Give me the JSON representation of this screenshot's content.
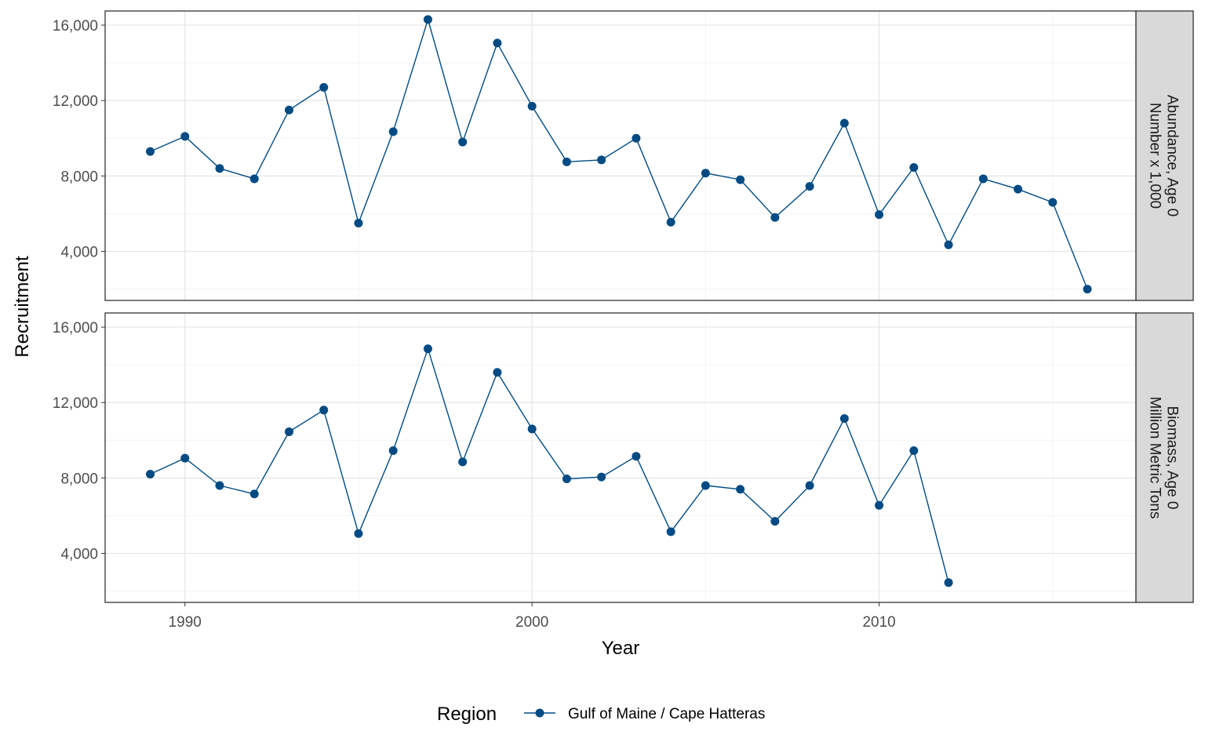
{
  "chart_data": {
    "type": "line",
    "facet_layout": "rows",
    "xlabel": "Year",
    "ylabel": "Recruitment",
    "x_ticks": [
      1990,
      2000,
      2010
    ],
    "x_range": [
      1987.7,
      2017.4
    ],
    "y_ticks": [
      4000,
      8000,
      12000,
      16000
    ],
    "y_tick_labels": [
      "4,000",
      "8,000",
      "12,000",
      "16,000"
    ],
    "y_range": [
      1400,
      16750
    ],
    "grid": true,
    "legend": {
      "title": "Region",
      "position": "bottom",
      "entries": [
        {
          "label": "Gulf of Maine / Cape Hatteras",
          "color": "#004b83"
        }
      ]
    },
    "panels": [
      {
        "strip_lines": [
          "Abundance, Age 0",
          "Number x 1,000"
        ],
        "series": [
          {
            "name": "Gulf of Maine / Cape Hatteras",
            "color": "#004b83",
            "x": [
              1989,
              1990,
              1991,
              1992,
              1993,
              1994,
              1995,
              1996,
              1997,
              1998,
              1999,
              2000,
              2001,
              2002,
              2003,
              2004,
              2005,
              2006,
              2007,
              2008,
              2009,
              2010,
              2011,
              2012,
              2013,
              2014,
              2015,
              2016
            ],
            "y": [
              9300,
              10100,
              8400,
              7850,
              11500,
              12700,
              5500,
              10350,
              16300,
              9800,
              15050,
              11700,
              8750,
              8850,
              10000,
              5550,
              8150,
              7800,
              5800,
              7450,
              10800,
              5950,
              8450,
              4350,
              7850,
              7300,
              6600,
              2000
            ]
          }
        ]
      },
      {
        "strip_lines": [
          "Biomass, Age 0",
          "Million Metric Tons"
        ],
        "series": [
          {
            "name": "Gulf of Maine / Cape Hatteras",
            "color": "#004b83",
            "x": [
              1989,
              1990,
              1991,
              1992,
              1993,
              1994,
              1995,
              1996,
              1997,
              1998,
              1999,
              2000,
              2001,
              2002,
              2003,
              2004,
              2005,
              2006,
              2007,
              2008,
              2009,
              2010,
              2011,
              2012
            ],
            "y": [
              8200,
              9050,
              7600,
              7150,
              10450,
              11600,
              5050,
              9450,
              14850,
              8850,
              13600,
              10600,
              7950,
              8050,
              9150,
              5150,
              7600,
              7400,
              5700,
              7600,
              11150,
              6550,
              9450,
              2450
            ]
          }
        ]
      }
    ]
  }
}
